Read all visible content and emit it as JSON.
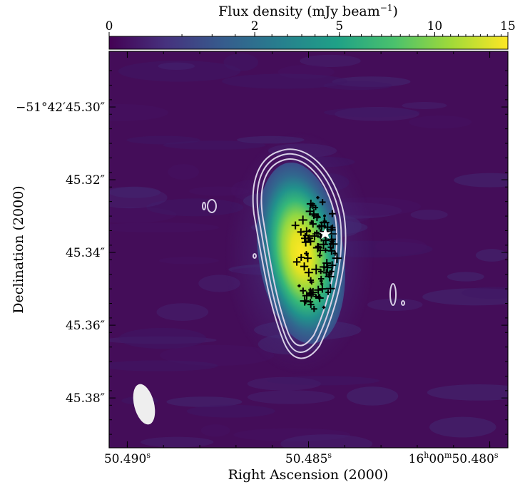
{
  "chart_data": {
    "type": "heatmap",
    "title": "",
    "colorbar": {
      "label_main": "Flux density (mJy beam",
      "label_sup": "−1",
      "label_close": ")",
      "scale": "power-law",
      "range": [
        0,
        15
      ],
      "ticks": [
        {
          "value": 0,
          "label": "0"
        },
        {
          "value": 2,
          "label": "2"
        },
        {
          "value": 5,
          "label": "5"
        },
        {
          "value": 10,
          "label": "10"
        },
        {
          "value": 15,
          "label": "15"
        }
      ],
      "colormap": [
        "#440154",
        "#46327e",
        "#365c8d",
        "#277f8e",
        "#1fa187",
        "#4ac16d",
        "#a0da39",
        "#fde725"
      ]
    },
    "xlabel": "Right Ascension (2000)",
    "ylabel": "Declination (2000)",
    "x_ticks": [
      {
        "main": "50.490",
        "sup": "s",
        "value": 50.49
      },
      {
        "main": "50.485",
        "sup": "s",
        "value": 50.485
      },
      {
        "main": "16",
        "sup_h": "h",
        "mid": "00",
        "sup_m": "m",
        "tail": "50.480",
        "sup": "s",
        "value": 50.48
      }
    ],
    "y_ticks": [
      {
        "label": "−51°42′45.30″",
        "value": 45.3
      },
      {
        "label": "45.32″",
        "value": 45.32
      },
      {
        "label": "45.34″",
        "value": 45.34
      },
      {
        "label": "45.36″",
        "value": 45.36
      },
      {
        "label": "45.38″",
        "value": 45.38
      }
    ],
    "xlim_seconds": [
      50.4905,
      50.4795
    ],
    "ylim_arcsec": [
      45.2847,
      45.3937
    ],
    "source_peak_mJy": 15,
    "source_center": {
      "ra_s": 50.4848,
      "dec_arcsec": 45.3405
    },
    "contour_color": "#d8d0e6",
    "beam_color": "#eeeeee",
    "star_color": "#ffffff",
    "markers_color": "#000000"
  }
}
